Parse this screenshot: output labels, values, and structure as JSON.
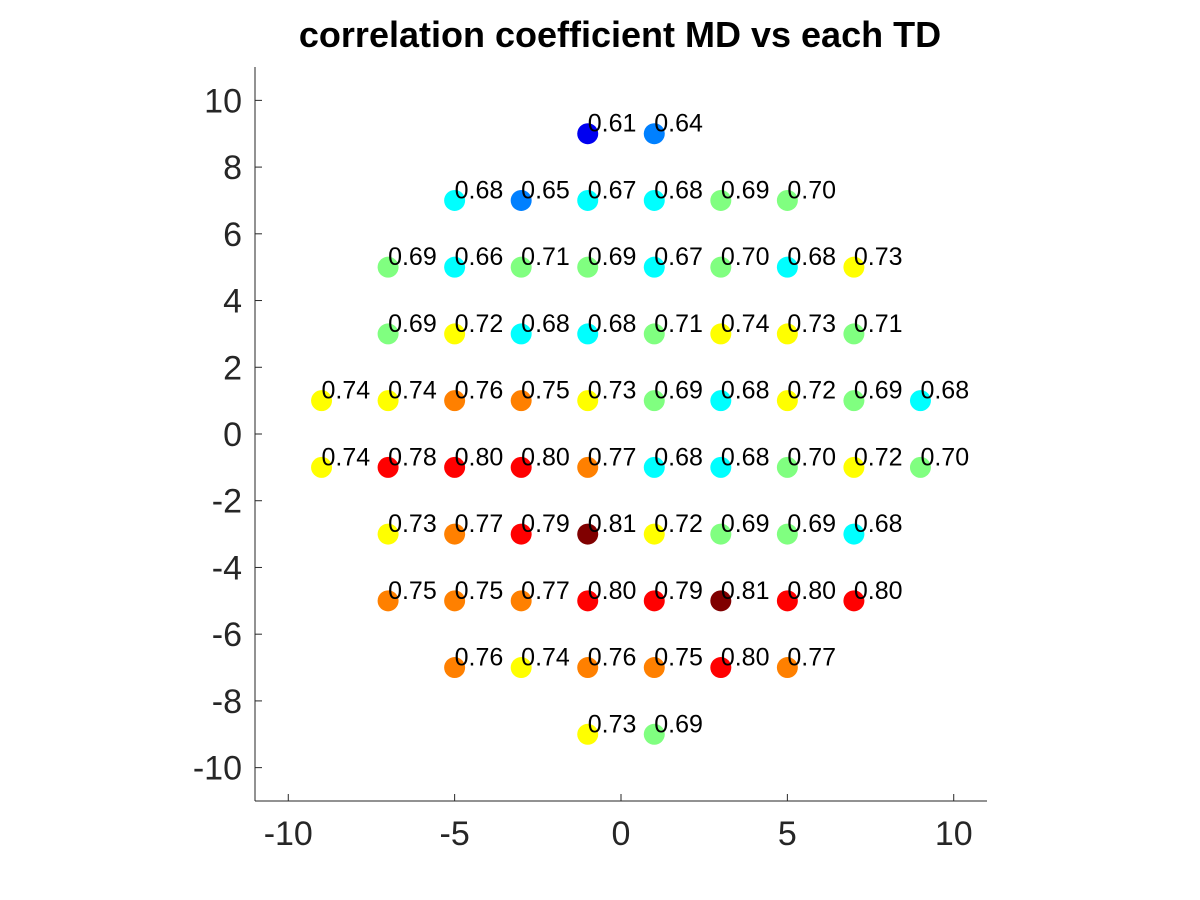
{
  "chart_data": {
    "type": "scatter",
    "title": "correlation coefficient MD vs each TD",
    "xlabel": "",
    "ylabel": "",
    "xlim": [
      -11,
      11
    ],
    "ylim": [
      -11,
      11
    ],
    "xticks": [
      "-10",
      "-5",
      "0",
      "5",
      "10"
    ],
    "yticks": [
      "-10",
      "-8",
      "-6",
      "-4",
      "-2",
      "0",
      "2",
      "4",
      "6",
      "8",
      "10"
    ],
    "grid": false,
    "colormap": "jet",
    "points": [
      {
        "x": -1,
        "y": 9,
        "value": "0.61",
        "color": "#0000f0"
      },
      {
        "x": 1,
        "y": 9,
        "value": "0.64",
        "color": "#0080ff"
      },
      {
        "x": -5,
        "y": 7,
        "value": "0.68",
        "color": "#00ffff"
      },
      {
        "x": -3,
        "y": 7,
        "value": "0.65",
        "color": "#0080ff"
      },
      {
        "x": -1,
        "y": 7,
        "value": "0.67",
        "color": "#00ffff"
      },
      {
        "x": 1,
        "y": 7,
        "value": "0.68",
        "color": "#00ffff"
      },
      {
        "x": 3,
        "y": 7,
        "value": "0.69",
        "color": "#80ff80"
      },
      {
        "x": 5,
        "y": 7,
        "value": "0.70",
        "color": "#80ff80"
      },
      {
        "x": -7,
        "y": 5,
        "value": "0.69",
        "color": "#80ff80"
      },
      {
        "x": -5,
        "y": 5,
        "value": "0.66",
        "color": "#00ffff"
      },
      {
        "x": -3,
        "y": 5,
        "value": "0.71",
        "color": "#80ff80"
      },
      {
        "x": -1,
        "y": 5,
        "value": "0.69",
        "color": "#80ff80"
      },
      {
        "x": 1,
        "y": 5,
        "value": "0.67",
        "color": "#00ffff"
      },
      {
        "x": 3,
        "y": 5,
        "value": "0.70",
        "color": "#80ff80"
      },
      {
        "x": 5,
        "y": 5,
        "value": "0.68",
        "color": "#00ffff"
      },
      {
        "x": 7,
        "y": 5,
        "value": "0.73",
        "color": "#ffff00"
      },
      {
        "x": -7,
        "y": 3,
        "value": "0.69",
        "color": "#80ff80"
      },
      {
        "x": -5,
        "y": 3,
        "value": "0.72",
        "color": "#ffff00"
      },
      {
        "x": -3,
        "y": 3,
        "value": "0.68",
        "color": "#00ffff"
      },
      {
        "x": -1,
        "y": 3,
        "value": "0.68",
        "color": "#00ffff"
      },
      {
        "x": 1,
        "y": 3,
        "value": "0.71",
        "color": "#80ff80"
      },
      {
        "x": 3,
        "y": 3,
        "value": "0.74",
        "color": "#ffff00"
      },
      {
        "x": 5,
        "y": 3,
        "value": "0.73",
        "color": "#ffff00"
      },
      {
        "x": 7,
        "y": 3,
        "value": "0.71",
        "color": "#80ff80"
      },
      {
        "x": -9,
        "y": 1,
        "value": "0.74",
        "color": "#ffff00"
      },
      {
        "x": -7,
        "y": 1,
        "value": "0.74",
        "color": "#ffff00"
      },
      {
        "x": -5,
        "y": 1,
        "value": "0.76",
        "color": "#ff8000"
      },
      {
        "x": -3,
        "y": 1,
        "value": "0.75",
        "color": "#ff8000"
      },
      {
        "x": -1,
        "y": 1,
        "value": "0.73",
        "color": "#ffff00"
      },
      {
        "x": 1,
        "y": 1,
        "value": "0.69",
        "color": "#80ff80"
      },
      {
        "x": 3,
        "y": 1,
        "value": "0.68",
        "color": "#00ffff"
      },
      {
        "x": 5,
        "y": 1,
        "value": "0.72",
        "color": "#ffff00"
      },
      {
        "x": 7,
        "y": 1,
        "value": "0.69",
        "color": "#80ff80"
      },
      {
        "x": 9,
        "y": 1,
        "value": "0.68",
        "color": "#00ffff"
      },
      {
        "x": -9,
        "y": -1,
        "value": "0.74",
        "color": "#ffff00"
      },
      {
        "x": -7,
        "y": -1,
        "value": "0.78",
        "color": "#ff0000"
      },
      {
        "x": -5,
        "y": -1,
        "value": "0.80",
        "color": "#ff0000"
      },
      {
        "x": -3,
        "y": -1,
        "value": "0.80",
        "color": "#ff0000"
      },
      {
        "x": -1,
        "y": -1,
        "value": "0.77",
        "color": "#ff8000"
      },
      {
        "x": 1,
        "y": -1,
        "value": "0.68",
        "color": "#00ffff"
      },
      {
        "x": 3,
        "y": -1,
        "value": "0.68",
        "color": "#00ffff"
      },
      {
        "x": 5,
        "y": -1,
        "value": "0.70",
        "color": "#80ff80"
      },
      {
        "x": 7,
        "y": -1,
        "value": "0.72",
        "color": "#ffff00"
      },
      {
        "x": 9,
        "y": -1,
        "value": "0.70",
        "color": "#80ff80"
      },
      {
        "x": -7,
        "y": -3,
        "value": "0.73",
        "color": "#ffff00"
      },
      {
        "x": -5,
        "y": -3,
        "value": "0.77",
        "color": "#ff8000"
      },
      {
        "x": -3,
        "y": -3,
        "value": "0.79",
        "color": "#ff0000"
      },
      {
        "x": -1,
        "y": -3,
        "value": "0.81",
        "color": "#800000"
      },
      {
        "x": 1,
        "y": -3,
        "value": "0.72",
        "color": "#ffff00"
      },
      {
        "x": 3,
        "y": -3,
        "value": "0.69",
        "color": "#80ff80"
      },
      {
        "x": 5,
        "y": -3,
        "value": "0.69",
        "color": "#80ff80"
      },
      {
        "x": 7,
        "y": -3,
        "value": "0.68",
        "color": "#00ffff"
      },
      {
        "x": -7,
        "y": -5,
        "value": "0.75",
        "color": "#ff8000"
      },
      {
        "x": -5,
        "y": -5,
        "value": "0.75",
        "color": "#ff8000"
      },
      {
        "x": -3,
        "y": -5,
        "value": "0.77",
        "color": "#ff8000"
      },
      {
        "x": -1,
        "y": -5,
        "value": "0.80",
        "color": "#ff0000"
      },
      {
        "x": 1,
        "y": -5,
        "value": "0.79",
        "color": "#ff0000"
      },
      {
        "x": 3,
        "y": -5,
        "value": "0.81",
        "color": "#800000"
      },
      {
        "x": 5,
        "y": -5,
        "value": "0.80",
        "color": "#ff0000"
      },
      {
        "x": 7,
        "y": -5,
        "value": "0.80",
        "color": "#ff0000"
      },
      {
        "x": -5,
        "y": -7,
        "value": "0.76",
        "color": "#ff8000"
      },
      {
        "x": -3,
        "y": -7,
        "value": "0.74",
        "color": "#ffff00"
      },
      {
        "x": -1,
        "y": -7,
        "value": "0.76",
        "color": "#ff8000"
      },
      {
        "x": 1,
        "y": -7,
        "value": "0.75",
        "color": "#ff8000"
      },
      {
        "x": 3,
        "y": -7,
        "value": "0.80",
        "color": "#ff0000"
      },
      {
        "x": 5,
        "y": -7,
        "value": "0.77",
        "color": "#ff8000"
      },
      {
        "x": -1,
        "y": -9,
        "value": "0.73",
        "color": "#ffff00"
      },
      {
        "x": 1,
        "y": -9,
        "value": "0.69",
        "color": "#80ff80"
      }
    ]
  }
}
